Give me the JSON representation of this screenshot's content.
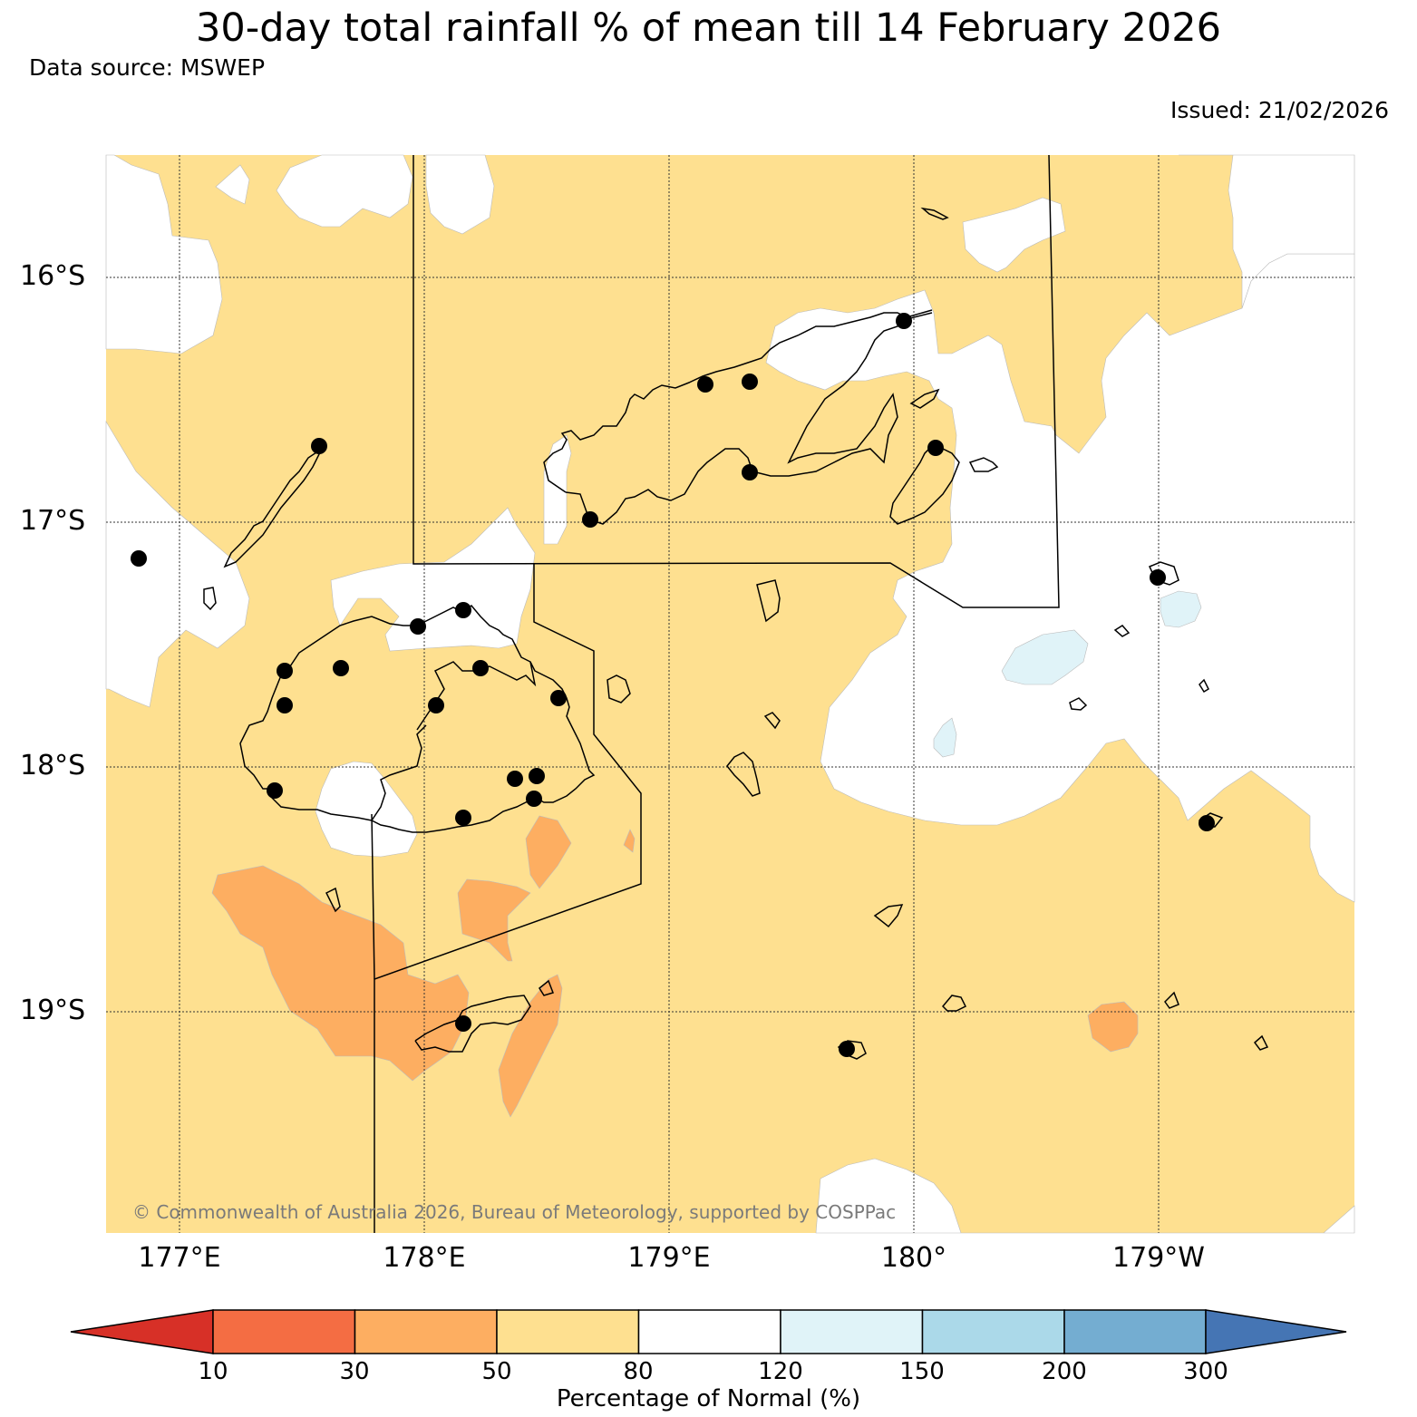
{
  "title": "30-day total rainfall % of mean till 14 February 2026",
  "data_source": "Data source: MSWEP",
  "issued": "Issued: 21/02/2026",
  "copyright": "© Commonwealth of Australia 2026, Bureau of Meteorology, supported by COSPPac",
  "lat_labels": [
    "16°S",
    "17°S",
    "18°S",
    "19°S"
  ],
  "lon_labels": [
    "177°E",
    "178°E",
    "179°E",
    "180°",
    "179°W"
  ],
  "colorbar": {
    "title": "Percentage of Normal (%)",
    "ticks": [
      "10",
      "30",
      "50",
      "80",
      "120",
      "150",
      "200",
      "300"
    ],
    "colors": [
      "#d73027",
      "#f46d43",
      "#fdae61",
      "#fee090",
      "#ffffff",
      "#e0f3f8",
      "#abd9e9",
      "#74add1",
      "#4575b4"
    ]
  },
  "map_colors": {
    "50_80": "#fee090",
    "30_50": "#fdae61",
    "80_120": "#ffffff",
    "120_150": "#e0f3f8"
  }
}
